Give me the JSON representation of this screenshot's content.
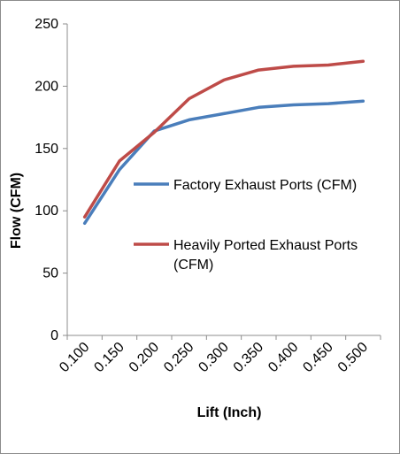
{
  "chart_data": {
    "type": "line",
    "xlabel": "Lift (Inch)",
    "ylabel": "Flow (CFM)",
    "categories": [
      "0.100",
      "0.150",
      "0.200",
      "0.250",
      "0.300",
      "0.350",
      "0.400",
      "0.450",
      "0.500"
    ],
    "ylim": [
      0,
      250
    ],
    "yticks": [
      "0",
      "50",
      "100",
      "150",
      "200",
      "250"
    ],
    "grid": false,
    "legend_position": "right",
    "series": [
      {
        "name": "Factory Exhaust Ports (CFM)",
        "legend_lines": [
          "Factory Exhaust Ports (CFM)"
        ],
        "color": "#4a7ebb",
        "values": [
          90,
          133,
          164,
          173,
          178,
          183,
          185,
          186,
          188
        ]
      },
      {
        "name": "Heavily Ported Exhaust Ports (CFM)",
        "legend_lines": [
          "Heavily Ported Exhaust Ports",
          "(CFM)"
        ],
        "color": "#be4b48",
        "values": [
          95,
          140,
          163,
          190,
          205,
          213,
          216,
          217,
          220
        ]
      }
    ]
  }
}
